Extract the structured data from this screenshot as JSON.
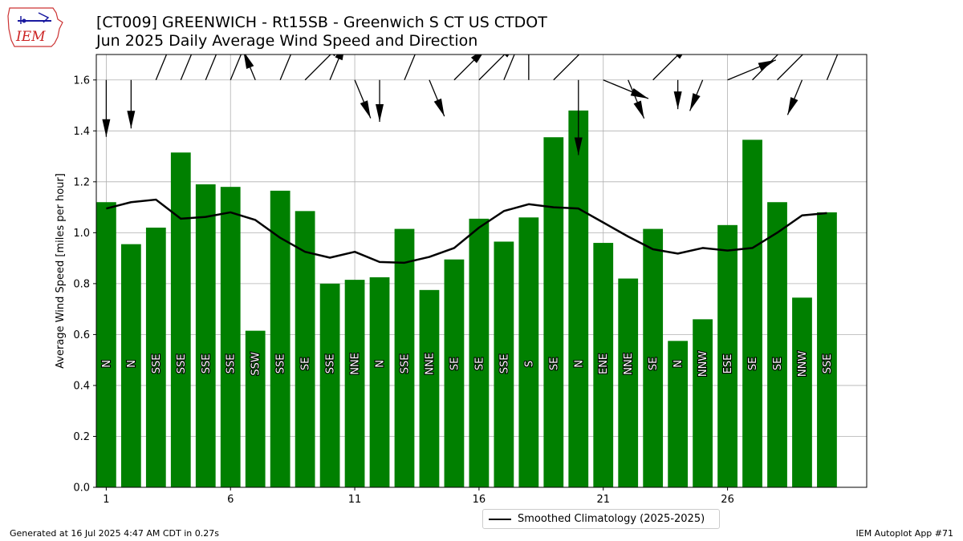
{
  "header": {
    "title_line1": "[CT009] GREENWICH - Rt15SB - Greenwich S CT US  CTDOT",
    "title_line2": "Jun 2025 Daily Average Wind Speed and Direction"
  },
  "logo": {
    "text": "IEM"
  },
  "footer": {
    "left": "Generated at 16 Jul 2025 4:47 AM CDT in 0.27s",
    "right": "IEM Autoplot App #71"
  },
  "colors": {
    "bar": "#008000",
    "line": "#000000",
    "grid": "#b0b0b0"
  },
  "chart_data": {
    "type": "bar",
    "ylabel": "Average Wind Speed [miles per hour]",
    "ylim": [
      0,
      1.7
    ],
    "xlim": [
      0.6,
      31.6
    ],
    "yticks": [
      0.0,
      0.2,
      0.4,
      0.6,
      0.8,
      1.0,
      1.2,
      1.4,
      1.6
    ],
    "xticks": [
      1,
      6,
      11,
      16,
      21,
      26
    ],
    "grid": true,
    "legend_position": "below-center",
    "days": [
      1,
      2,
      3,
      4,
      5,
      6,
      7,
      8,
      9,
      10,
      11,
      12,
      13,
      14,
      15,
      16,
      17,
      18,
      19,
      20,
      21,
      22,
      23,
      24,
      25,
      26,
      27,
      28,
      29,
      30
    ],
    "speed": [
      1.12,
      0.955,
      1.02,
      1.315,
      1.19,
      1.18,
      0.615,
      1.165,
      1.085,
      0.8,
      0.815,
      0.825,
      1.015,
      0.775,
      0.895,
      1.055,
      0.965,
      1.06,
      1.375,
      1.48,
      0.96,
      0.82,
      1.015,
      0.575,
      0.66,
      1.03,
      1.365,
      1.12,
      0.745,
      1.08
    ],
    "direction": [
      "N",
      "N",
      "SSE",
      "SSE",
      "SSE",
      "SSE",
      "SSW",
      "SSE",
      "SE",
      "SSE",
      "NNE",
      "N",
      "SSE",
      "NNE",
      "SE",
      "SE",
      "SSE",
      "S",
      "SE",
      "N",
      "ENE",
      "NNE",
      "SE",
      "N",
      "NNW",
      "ESE",
      "SE",
      "SE",
      "NNW",
      "SSE"
    ],
    "series": [
      {
        "name": "Smoothed Climatology (2025-2025)",
        "values": [
          1.095,
          1.12,
          1.13,
          1.055,
          1.062,
          1.08,
          1.05,
          0.98,
          0.925,
          0.902,
          0.925,
          0.885,
          0.882,
          0.905,
          0.94,
          1.02,
          1.085,
          1.112,
          1.1,
          1.095,
          1.04,
          0.985,
          0.935,
          0.918,
          0.94,
          0.93,
          0.94,
          1.0,
          1.068,
          1.077
        ]
      }
    ]
  }
}
